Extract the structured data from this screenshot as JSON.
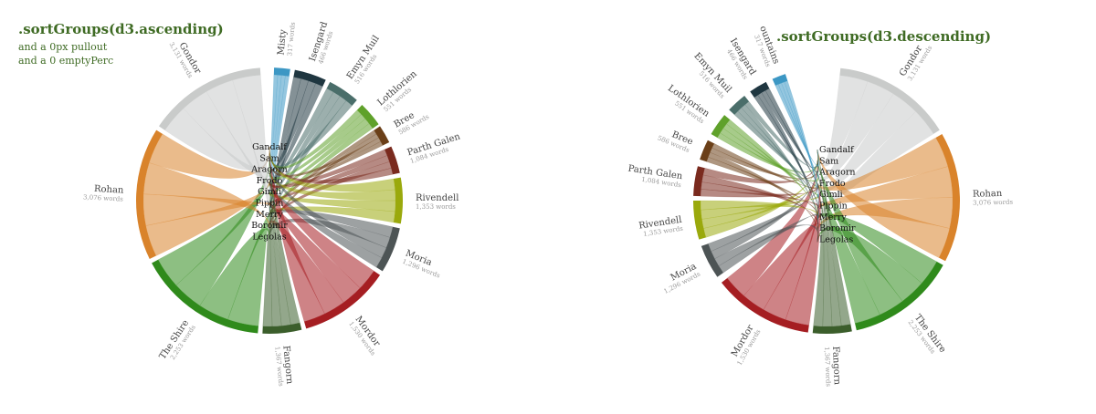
{
  "panels": [
    {
      "title": ".sortGroups(d3.ascending)",
      "subtitle_lines": [
        "and a 0px pullout",
        "and a 0 emptyPerc"
      ]
    },
    {
      "title": ".sortGroups(d3.descending)",
      "subtitle_lines": []
    }
  ],
  "characters": [
    "Gandalf",
    "Sam",
    "Aragorn",
    "Frodo",
    "Gimli",
    "Pippin",
    "Merry",
    "Boromir",
    "Legolas"
  ],
  "locations": [
    {
      "name": "Gondor",
      "words": "3,131 words",
      "color": "#c9cbca"
    },
    {
      "name": "Rohan",
      "words": "3,076 words",
      "color": "#d9832b"
    },
    {
      "name": "The Shire",
      "words": "2,253 words",
      "color": "#2f8a1b"
    },
    {
      "name": "Fangorn",
      "words": "1,367 words",
      "color": "#3b5e2b"
    },
    {
      "name": "Mordor",
      "words": "1,530 words",
      "color": "#a51e22"
    },
    {
      "name": "Moria",
      "words": "1,296 words",
      "color": "#4d5455"
    },
    {
      "name": "Rivendell",
      "words": "1,353 words",
      "color": "#9aa90c"
    },
    {
      "name": "Parth Galen",
      "words": "1,084 words",
      "color": "#7a2a1e"
    },
    {
      "name": "Bree",
      "words": "586 words",
      "color": "#6b3f18"
    },
    {
      "name": "Lothlorien",
      "words": "551 words",
      "color": "#5fa12a"
    },
    {
      "name": "Emyn Muil",
      "words": "516 words",
      "color": "#4a6e6a"
    },
    {
      "name": "Isengard",
      "words": "466 words",
      "color": "#1f3640"
    },
    {
      "name": "Misty",
      "words": "317 words",
      "color": "#3c97c4"
    }
  ],
  "right_top_label": "ountains",
  "character_color": "#ffffff"
}
